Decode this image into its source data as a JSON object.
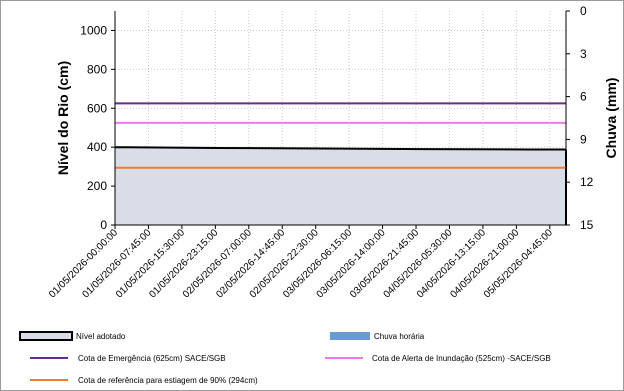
{
  "chart_data": {
    "type": "area",
    "title": "",
    "ylabel": "Nível do Rio (cm)",
    "y2label": "Chuva (mm)",
    "ylim": [
      0,
      1100
    ],
    "yticks": [
      0,
      200,
      400,
      600,
      800,
      1000
    ],
    "y2lim": [
      0,
      15
    ],
    "y2ticks": [
      0,
      3,
      6,
      9,
      12,
      15
    ],
    "y2_inverted": true,
    "grid": "horizontal-dotted",
    "x_range": [
      "01/05/2026-00:00:00",
      "05/05/2026-08:30:00"
    ],
    "xtick_labels": [
      "01/05/2026-00:00:00",
      "01/05/2026-07:45:00",
      "01/05/2026-15:30:00",
      "01/05/2026-23:15:00",
      "02/05/2026-07:00:00",
      "02/05/2026-14:45:00",
      "02/05/2026-22:30:00",
      "03/05/2026-06:15:00",
      "03/05/2026-14:00:00",
      "03/05/2026-21:45:00",
      "04/05/2026-05:30:00",
      "04/05/2026-13:15:00",
      "04/05/2026-21:00:00",
      "05/05/2026-04:45:00"
    ],
    "series": [
      {
        "name": "Nível adotado",
        "kind": "area",
        "color": "#d9dde8",
        "edge": "#000000",
        "x": [
          "01/05/2026-00:00:00",
          "02/05/2026-00:00:00",
          "03/05/2026-00:00:00",
          "04/05/2026-00:00:00",
          "05/05/2026-00:00:00",
          "05/05/2026-08:30:00"
        ],
        "values": [
          400,
          396,
          393,
          390,
          388,
          388
        ]
      },
      {
        "name": "Chuva horária",
        "kind": "bar",
        "axis": "y2",
        "color": "#6a9bd1",
        "values": []
      },
      {
        "name": "Cota de Emergência   (625cm) SACE/SGB",
        "kind": "hline",
        "value": 625,
        "color": "#6a2c8f"
      },
      {
        "name": "Cota de Alerta  de Inundação (525cm) -SACE/SGB",
        "kind": "hline",
        "value": 525,
        "color": "#e87de8"
      },
      {
        "name": "Cota de referência para estiagem de 90% (294cm)",
        "kind": "hline",
        "value": 294,
        "color": "#ed7d31"
      }
    ],
    "legend": {
      "position": "bottom"
    }
  }
}
